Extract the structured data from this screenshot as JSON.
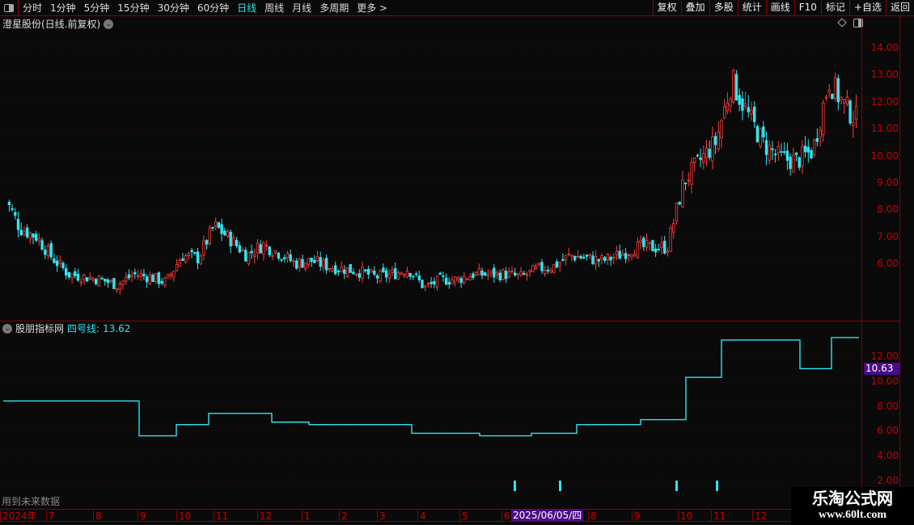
{
  "toolbar": {
    "periods": [
      "分时",
      "1分钟",
      "5分钟",
      "15分钟",
      "30分钟",
      "60分钟",
      "日线",
      "周线",
      "月线",
      "多周期",
      "更多 >"
    ],
    "active_period": "日线",
    "right_buttons": [
      "复权",
      "叠加",
      "多股",
      "统计",
      "画线",
      "F10",
      "标记",
      "+自选",
      "返回"
    ]
  },
  "main": {
    "title": "澄星股份(日线.前复权)",
    "y_ticks": [
      "14.00",
      "13.00",
      "12.00",
      "11.00",
      "10.00",
      "9.00",
      "8.00",
      "7.00",
      "6.00"
    ]
  },
  "indicator": {
    "name": "股朋指标网",
    "line_label": "四号线:",
    "line_value": "13.62",
    "current_value": "10.63",
    "y_ticks": [
      "12.00",
      "10.00",
      "8.00",
      "6.00",
      "4.00",
      "2.00"
    ],
    "future_warning": "用到未来数据"
  },
  "date_axis": {
    "labels": [
      "2024年",
      "7",
      "8",
      "9",
      "10",
      "11",
      "12",
      "1",
      "2",
      "3",
      "4",
      "5",
      "6",
      "8",
      "9",
      "10",
      "11",
      "12"
    ],
    "cursor_date": "2025/06/05/四"
  },
  "watermark": {
    "title": "乐淘公式网",
    "url": "www.60lt.com"
  },
  "colors": {
    "up": "#ff3b3b",
    "down": "#2ee6f0",
    "grid": "#8b0000",
    "axis_text": "#cc0000",
    "highlight": "#4b0a8a"
  },
  "chart_data": [
    {
      "type": "candlestick",
      "title": "澄星股份(日线.前复权)",
      "x_range": [
        "2024-06",
        "2025-12"
      ],
      "ylim": [
        5,
        14.6
      ],
      "approx_closes_sampled": [
        8.5,
        7.3,
        7.0,
        6.2,
        5.6,
        5.5,
        5.4,
        5.2,
        5.6,
        5.5,
        5.3,
        6.3,
        6.2,
        7.4,
        6.9,
        6.3,
        6.7,
        6.4,
        6.0,
        6.1,
        5.9,
        5.8,
        5.7,
        5.5,
        5.6,
        5.8,
        5.1,
        5.4,
        5.4,
        5.6,
        5.6,
        5.6,
        5.5,
        5.8,
        5.9,
        6.3,
        6.2,
        6.1,
        6.3,
        6.6,
        6.6,
        6.6,
        9.0,
        9.8,
        10.5,
        12.8,
        11.5,
        10.4,
        9.9,
        9.8,
        10.2,
        12.8,
        11.8,
        11.2
      ]
    },
    {
      "type": "line",
      "series": [
        {
          "name": "四号线",
          "step_values": [
            8.4,
            5.6,
            6.5,
            7.4,
            6.7,
            6.5,
            5.8,
            5.6,
            5.8,
            6.5,
            6.9,
            10.3,
            13.3,
            11.0,
            13.5
          ]
        }
      ],
      "ylim": [
        1.5,
        14
      ],
      "signals": [
        "2025-06",
        "2025-08",
        "2025-10",
        "2025-11"
      ]
    }
  ]
}
